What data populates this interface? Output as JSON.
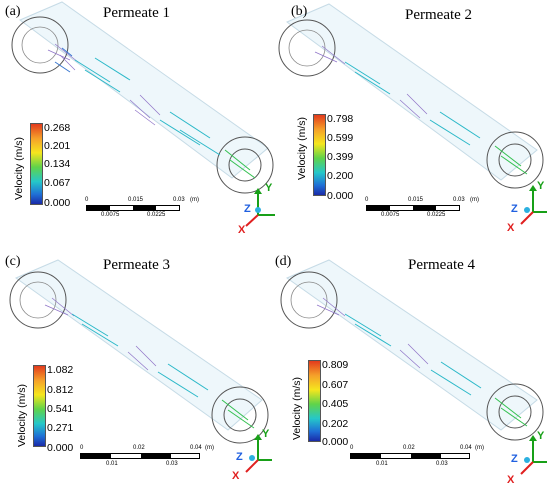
{
  "colorbar_label": "Velocity (m/s)",
  "panels": [
    {
      "tag": "(a)",
      "title": "Permeate 1",
      "ticks": [
        "0.268",
        "0.201",
        "0.134",
        "0.067",
        "0.000"
      ],
      "scale_top": [
        "0",
        "0.015",
        "0.03",
        "(m)"
      ],
      "scale_bottom": [
        "0.0075",
        "0.0225"
      ]
    },
    {
      "tag": "(b)",
      "title": "Permeate 2",
      "ticks": [
        "0.798",
        "0.599",
        "0.399",
        "0.200",
        "0.000"
      ],
      "scale_top": [
        "0",
        "0.015",
        "0.03",
        "(m)"
      ],
      "scale_bottom": [
        "0.0075",
        "0.0225"
      ]
    },
    {
      "tag": "(c)",
      "title": "Permeate 3",
      "ticks": [
        "1.082",
        "0.812",
        "0.541",
        "0.271",
        "0.000"
      ],
      "scale_top": [
        "0",
        "0.02",
        "0.04",
        "(m)"
      ],
      "scale_bottom": [
        "0.01",
        "0.03"
      ]
    },
    {
      "tag": "(d)",
      "title": "Permeate 4",
      "ticks": [
        "0.809",
        "0.607",
        "0.405",
        "0.202",
        "0.000"
      ],
      "scale_top": [
        "0",
        "0.02",
        "0.04",
        "(m)"
      ],
      "scale_bottom": [
        "0.01",
        "0.03"
      ]
    }
  ],
  "axes": {
    "x": "X",
    "y": "Y",
    "z": "Z"
  },
  "colors": {
    "x_axis": "#e02020",
    "y_axis": "#18a018",
    "z_axis": "#2060e0",
    "flow": "#2ab8c8"
  }
}
